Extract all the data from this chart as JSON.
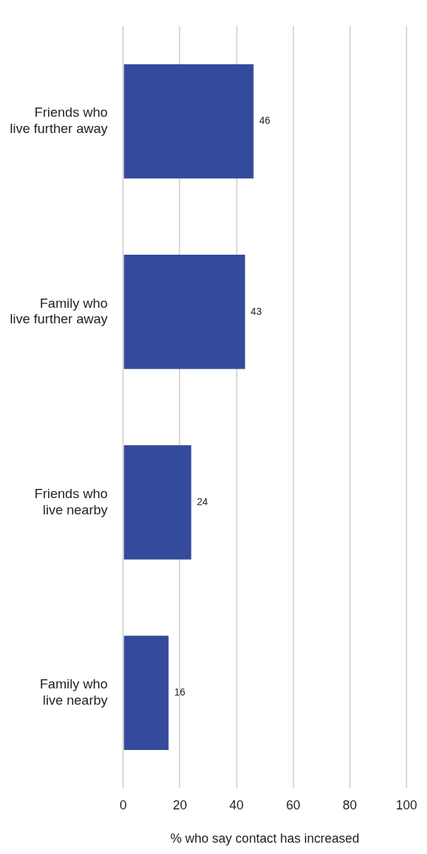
{
  "chart_data": {
    "type": "bar",
    "orientation": "horizontal",
    "xlabel": "% who say contact has increased",
    "categories": [
      "Friends who live further away",
      "Family who live further away",
      "Friends who live nearby",
      "Family who live nearby"
    ],
    "values": [
      46,
      43,
      24,
      16
    ],
    "color": "#344a9c",
    "xlim": [
      0,
      100
    ],
    "xticks": [
      0,
      20,
      40,
      60,
      80,
      100
    ],
    "grid": "x",
    "legend": false,
    "data_labels": true
  }
}
